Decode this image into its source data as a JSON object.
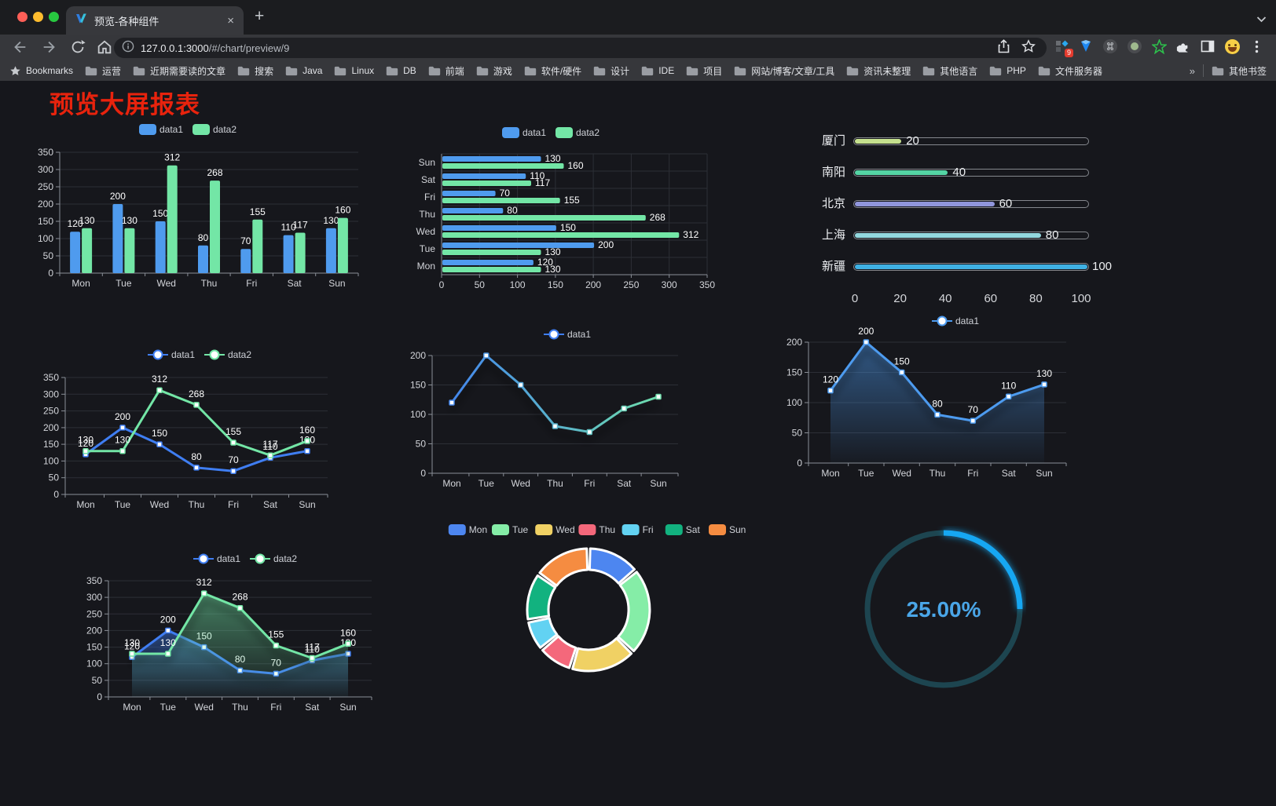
{
  "browser": {
    "tab_title": "预览-各种组件",
    "close_glyph": "×",
    "new_tab_glyph": "+",
    "url_host": "127.0.0.1:3000",
    "url_path": "/#/chart/preview/9",
    "bookmarks_root": "Bookmarks",
    "bookmarks": [
      "运营",
      "近期需要读的文章",
      "搜索",
      "Java",
      "Linux",
      "DB",
      "前端",
      "游戏",
      "软件/硬件",
      "设计",
      "IDE",
      "项目",
      "网站/博客/文章/工具",
      "资讯未整理",
      "其他语言",
      "PHP",
      "文件服务器"
    ],
    "overflow": "»",
    "other_bookmarks": "其他书签",
    "extension_badge": "9"
  },
  "page": {
    "title": "预览大屏报表",
    "title_color": "#e8230d",
    "background": "#16171c"
  },
  "chart_data": [
    {
      "id": "c1",
      "type": "bar",
      "legend_pos": "top",
      "categories": [
        "Mon",
        "Tue",
        "Wed",
        "Thu",
        "Fri",
        "Sat",
        "Sun"
      ],
      "series": [
        {
          "name": "data1",
          "color": "#4f9bee",
          "values": [
            120,
            200,
            150,
            80,
            70,
            110,
            130
          ]
        },
        {
          "name": "data2",
          "color": "#73e6a6",
          "values": [
            130,
            130,
            312,
            268,
            155,
            117,
            160
          ]
        }
      ],
      "ylim": [
        0,
        350
      ],
      "ystep": 50,
      "value_labels": true,
      "grid": true
    },
    {
      "id": "c2",
      "type": "hbar",
      "legend_pos": "top",
      "categories": [
        "Sun",
        "Sat",
        "Fri",
        "Thu",
        "Wed",
        "Tue",
        "Mon"
      ],
      "series": [
        {
          "name": "data1",
          "color": "#4f9bee",
          "values": [
            130,
            110,
            70,
            80,
            150,
            200,
            120
          ]
        },
        {
          "name": "data2",
          "color": "#73e6a6",
          "values": [
            160,
            117,
            155,
            268,
            312,
            130,
            130
          ]
        }
      ],
      "xlim": [
        0,
        350
      ],
      "xstep": 50,
      "value_labels": true,
      "grid": true
    },
    {
      "id": "c3",
      "type": "progress",
      "max": 100,
      "axis_ticks": [
        0,
        20,
        40,
        60,
        80,
        100
      ],
      "items": [
        {
          "label": "厦门",
          "value": 20,
          "color": "#c5e08e"
        },
        {
          "label": "南阳",
          "value": 40,
          "color": "#54d4a4"
        },
        {
          "label": "北京",
          "value": 60,
          "color": "#9096dc"
        },
        {
          "label": "上海",
          "value": 80,
          "color": "#93d8de"
        },
        {
          "label": "新疆",
          "value": 100,
          "color": "#3fb1e4"
        }
      ]
    },
    {
      "id": "c4",
      "type": "line",
      "legend_pos": "top",
      "categories": [
        "Mon",
        "Tue",
        "Wed",
        "Thu",
        "Fri",
        "Sat",
        "Sun"
      ],
      "series": [
        {
          "name": "data1",
          "color": "#3f7ef2",
          "values": [
            120,
            200,
            150,
            80,
            70,
            110,
            130
          ]
        },
        {
          "name": "data2",
          "color": "#73e6a6",
          "values": [
            130,
            130,
            312,
            268,
            155,
            117,
            160
          ]
        }
      ],
      "ylim": [
        0,
        350
      ],
      "ystep": 50,
      "value_labels": true,
      "grid": true
    },
    {
      "id": "c5",
      "type": "line",
      "legend_pos": "top",
      "categories": [
        "Mon",
        "Tue",
        "Wed",
        "Thu",
        "Fri",
        "Sat",
        "Sun"
      ],
      "series": [
        {
          "name": "data1",
          "color": "#3f7ef2",
          "gradient": [
            "#3f7ef2",
            "#73e6a6"
          ],
          "values": [
            120,
            200,
            150,
            80,
            70,
            110,
            130
          ]
        }
      ],
      "ylim": [
        0,
        200
      ],
      "ystep": 50,
      "value_labels": false,
      "shadow": true,
      "grid": true
    },
    {
      "id": "c6",
      "type": "line",
      "legend_pos": "top",
      "categories": [
        "Mon",
        "Tue",
        "Wed",
        "Thu",
        "Fri",
        "Sat",
        "Sun"
      ],
      "series": [
        {
          "name": "data1",
          "color": "#4d9bef",
          "area": true,
          "values": [
            120,
            200,
            150,
            80,
            70,
            110,
            130
          ]
        }
      ],
      "ylim": [
        0,
        200
      ],
      "ystep": 50,
      "value_labels": true,
      "shadow": true,
      "grid": true
    },
    {
      "id": "c7",
      "type": "line",
      "legend_pos": "top",
      "categories": [
        "Mon",
        "Tue",
        "Wed",
        "Thu",
        "Fri",
        "Sat",
        "Sun"
      ],
      "series": [
        {
          "name": "data1",
          "color": "#3f7ef2",
          "area": true,
          "values": [
            120,
            200,
            150,
            80,
            70,
            110,
            130
          ]
        },
        {
          "name": "data2",
          "color": "#73e6a6",
          "area": true,
          "values": [
            130,
            130,
            312,
            268,
            155,
            117,
            160
          ]
        }
      ],
      "ylim": [
        0,
        350
      ],
      "ystep": 50,
      "value_labels": true,
      "shadow": true,
      "grid": true
    },
    {
      "id": "c8",
      "type": "pie",
      "ring": true,
      "legend_pos": "top",
      "border_color": "#ffffff",
      "items": [
        {
          "label": "Mon",
          "value": 120,
          "color": "#4d86f0"
        },
        {
          "label": "Tue",
          "value": 200,
          "color": "#85eda7"
        },
        {
          "label": "Wed",
          "value": 150,
          "color": "#f0d164"
        },
        {
          "label": "Thu",
          "value": 80,
          "color": "#f4687b"
        },
        {
          "label": "Fri",
          "value": 70,
          "color": "#62d2f2"
        },
        {
          "label": "Sat",
          "value": 110,
          "color": "#12b27f"
        },
        {
          "label": "Sun",
          "value": 130,
          "color": "#f58c41"
        }
      ]
    },
    {
      "id": "c9",
      "type": "gauge",
      "percent": 25,
      "value_text": "25.00%",
      "color": "#18a7f2",
      "track_color": "#1d4550",
      "text_color": "#4aa6e8"
    }
  ]
}
